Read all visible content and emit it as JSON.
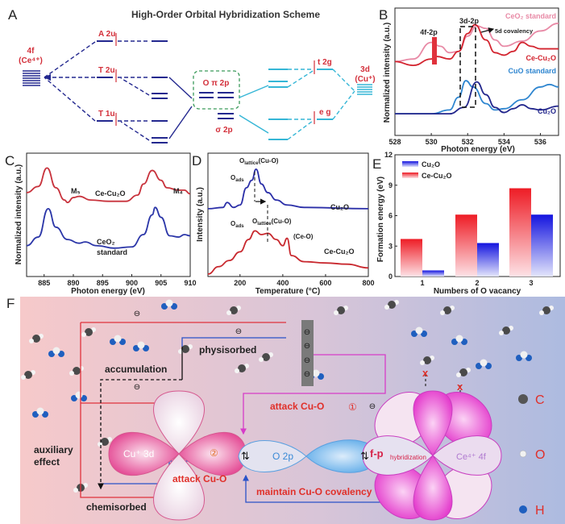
{
  "panel_labels": {
    "a": "A",
    "b": "B",
    "c": "C",
    "d": "D",
    "e": "E",
    "f": "F"
  },
  "panel_a": {
    "title": "High-Order Orbital Hybridization Scheme",
    "ce_label_1": "4f",
    "ce_label_2": "(Ce⁴⁺)",
    "cu_label_1": "3d",
    "cu_label_2": "(Cu⁺)",
    "levels": {
      "a2u": "A 2u",
      "t2u": "T 2u",
      "t1u": "T 1u",
      "o_pi": "O π 2p",
      "sigma": "σ 2p",
      "t2g": "t 2g",
      "eg": "e g"
    },
    "colors": {
      "ce_levels": "#23288f",
      "cu_levels": "#35b6d6",
      "labels": "#d32f3a",
      "box": "#3a9a5a"
    }
  },
  "chart_data": [
    {
      "panel": "B",
      "type": "line",
      "xlabel": "Photon energy (eV)",
      "ylabel": "Normalized intensity (a.u.)",
      "xlim": [
        528,
        537
      ],
      "xticks": [
        "528",
        "530",
        "532",
        "534",
        "536"
      ],
      "annotations": {
        "peak_4f": "4f-2p",
        "peak_3d": "3d-2p",
        "covalency": "5d covalency"
      },
      "series": [
        {
          "name": "CeO₂ standard",
          "color": "#e88aa6",
          "x": [
            528,
            529,
            530,
            530.5,
            531,
            531.5,
            532,
            532.5,
            533,
            533.5,
            534,
            535,
            536,
            537
          ],
          "y": [
            0.58,
            0.6,
            0.73,
            0.7,
            0.65,
            0.66,
            0.78,
            0.86,
            0.84,
            0.75,
            0.7,
            0.74,
            0.82,
            0.88
          ]
        },
        {
          "name": "Ce-Cu₂O",
          "color": "#d3242f",
          "x": [
            528,
            529,
            530,
            530.3,
            531,
            531.5,
            532,
            532.4,
            533,
            533.5,
            534,
            534.5,
            535,
            535.5,
            536,
            537
          ],
          "y": [
            0.58,
            0.55,
            0.6,
            0.62,
            0.6,
            0.66,
            0.8,
            0.87,
            0.75,
            0.65,
            0.63,
            0.66,
            0.73,
            0.7,
            0.68,
            0.68
          ]
        },
        {
          "name": "CuO standard",
          "color": "#2f86d0",
          "x": [
            528,
            530,
            531,
            531.5,
            531.9,
            532.3,
            533,
            533.5,
            534,
            535,
            536,
            536.5,
            537
          ],
          "y": [
            0.17,
            0.17,
            0.2,
            0.3,
            0.43,
            0.38,
            0.25,
            0.2,
            0.21,
            0.28,
            0.38,
            0.4,
            0.38
          ]
        },
        {
          "name": "Cu₂O",
          "color": "#22268c",
          "x": [
            528,
            531,
            531.8,
            532.5,
            533,
            533.5,
            534,
            534.5,
            535,
            535.5,
            536,
            537
          ],
          "y": [
            0.17,
            0.17,
            0.22,
            0.42,
            0.32,
            0.22,
            0.18,
            0.21,
            0.24,
            0.21,
            0.2,
            0.23
          ]
        }
      ]
    },
    {
      "panel": "C",
      "type": "line",
      "xlabel": "Photon energy (eV)",
      "ylabel": "Normalized intensity (a.u.)",
      "xlim": [
        882,
        910
      ],
      "xticks": [
        "885",
        "890",
        "895",
        "900",
        "905",
        "910"
      ],
      "annotations": {
        "m5": "M₅",
        "m4": "M₄"
      },
      "series": [
        {
          "name": "Ce-Cu₂O",
          "label": "Ce-Cu₂O",
          "color": "#c8323c",
          "x": [
            882,
            884,
            885.5,
            887,
            888.5,
            889,
            890,
            891,
            893,
            896,
            899,
            901,
            902,
            903.5,
            905,
            906,
            908,
            909,
            910
          ],
          "y": [
            0.68,
            0.73,
            0.88,
            0.72,
            0.62,
            0.6,
            0.64,
            0.65,
            0.62,
            0.61,
            0.61,
            0.66,
            0.75,
            0.86,
            0.78,
            0.72,
            0.7,
            0.7,
            0.67
          ]
        },
        {
          "name": "CeO₂ standard",
          "label_1": "CeO₂",
          "label_2": "standard",
          "color": "#2b36a8",
          "x": [
            882,
            884,
            885.7,
            887,
            889,
            891,
            892,
            894,
            897,
            900,
            902,
            903.5,
            904,
            905,
            906.5,
            908,
            909,
            910
          ],
          "y": [
            0.25,
            0.32,
            0.55,
            0.4,
            0.3,
            0.27,
            0.28,
            0.25,
            0.23,
            0.24,
            0.34,
            0.5,
            0.56,
            0.48,
            0.33,
            0.32,
            0.34,
            0.33
          ]
        }
      ]
    },
    {
      "panel": "D",
      "type": "line",
      "xlabel": "Temperature (°C)",
      "ylabel": "Intensity (a.u.)",
      "xlim": [
        50,
        800
      ],
      "xticks": [
        "200",
        "400",
        "600",
        "800"
      ],
      "annotations": {
        "o_ads": "O",
        "o_ads_sub": "ads",
        "o_lat": "O",
        "o_lat_sub": "lattice",
        "o_lat_tail": "(Cu-O)",
        "ce_o": "(Ce-O)"
      },
      "series": [
        {
          "name": "Cu₂O",
          "color": "#2b2fa8",
          "x": [
            50,
            120,
            140,
            170,
            200,
            230,
            255,
            275,
            300,
            330,
            370,
            420,
            500,
            800
          ],
          "y": [
            0.55,
            0.56,
            0.6,
            0.56,
            0.58,
            0.72,
            0.78,
            0.87,
            0.75,
            0.68,
            0.62,
            0.58,
            0.56,
            0.55
          ]
        },
        {
          "name": "Ce-Cu₂O",
          "color": "#c8282e",
          "x": [
            50,
            100,
            150,
            200,
            240,
            270,
            300,
            330,
            370,
            400,
            420,
            440,
            500,
            600,
            700,
            800
          ],
          "y": [
            0.02,
            0.08,
            0.13,
            0.2,
            0.3,
            0.37,
            0.34,
            0.35,
            0.3,
            0.25,
            0.31,
            0.17,
            0.12,
            0.11,
            0.1,
            0.07
          ]
        }
      ]
    },
    {
      "panel": "E",
      "type": "bar",
      "xlabel": "Numbers of O vacancy",
      "ylabel": "Formation energy (eV)",
      "ylim": [
        0,
        12
      ],
      "yticks": [
        "0",
        "3",
        "6",
        "9",
        "12"
      ],
      "categories": [
        "1",
        "2",
        "3"
      ],
      "legend": "top-left",
      "series": [
        {
          "name": "Cu₂O",
          "color": "#1a1adf",
          "values": [
            0.6,
            3.3,
            6.1
          ]
        },
        {
          "name": "Ce-Cu₂O",
          "color": "#ee1c25",
          "values": [
            3.7,
            6.1,
            8.7
          ]
        }
      ]
    }
  ],
  "panel_f": {
    "physisorbed": "physisorbed",
    "accumulation": "accumulation",
    "auxiliary_1": "auxiliary",
    "auxiliary_2": "effect",
    "chemisorbed": "chemisorbed",
    "cu3d": "Cu⁺ 3d",
    "step2": "②",
    "attack_2": "attack Cu-O",
    "attack_1": "attack Cu-O",
    "step1": "①",
    "o2p": "O 2p",
    "fp": "f-p",
    "hybridization": "hybridization",
    "ce4f": "Ce⁴⁺ 4f",
    "maintain": "maintain Cu-O covalency",
    "spin": "⇅",
    "blocked": "x",
    "electron": "⊖",
    "legend": [
      {
        "symbol": "C",
        "color": "#555555"
      },
      {
        "symbol": "O",
        "color": "#f2f2f2"
      },
      {
        "symbol": "H",
        "color": "#1f5fbf"
      }
    ]
  }
}
